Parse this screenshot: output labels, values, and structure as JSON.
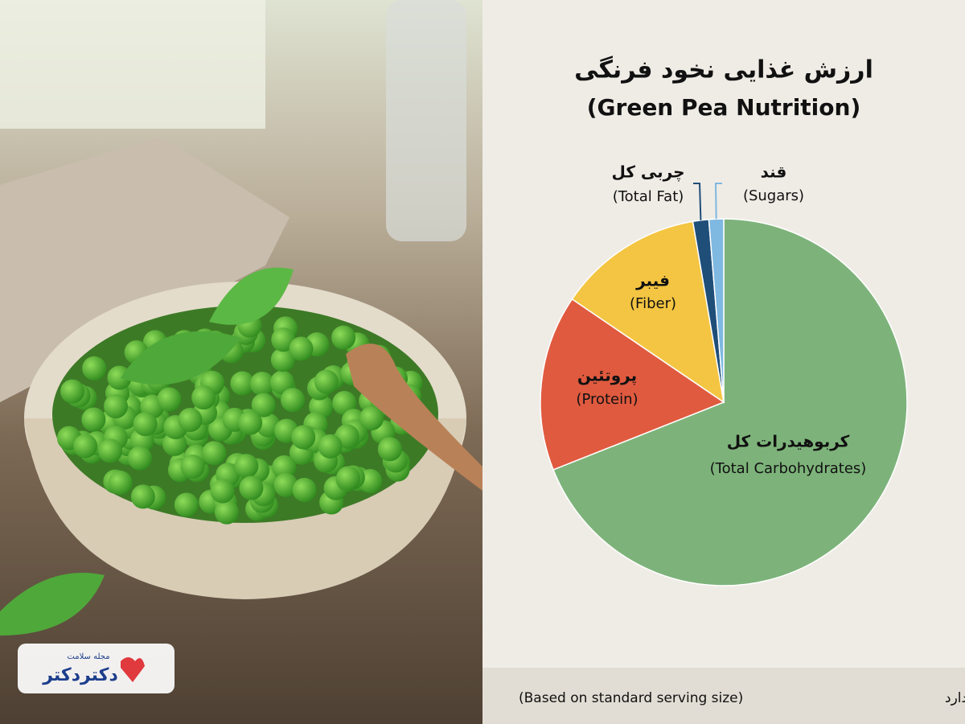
{
  "chart_data": {
    "type": "pie",
    "title": "ارزش غذایی نخود فرنگی",
    "subtitle": "(Green Pea Nutrition)",
    "categories": [
      "کربوهیدرات کل",
      "پروتئین",
      "فیبر",
      "چربی کل",
      "قند"
    ],
    "categories_en": [
      "(Total Carbohydrates)",
      "(Protein)",
      "(Fiber)",
      "(Total Fat)",
      "(Sugars)"
    ],
    "values": [
      69,
      15.5,
      12.8,
      1.4,
      1.3
    ],
    "colors": [
      "#7db37a",
      "#e05a3f",
      "#f4c542",
      "#1f4e79",
      "#7fb8e0"
    ],
    "footnote_fa": "بر اساس اندازه سرو استاندارد",
    "footnote_en": "(Based on standard serving size)"
  },
  "logo": {
    "tagline": "مجله سلامت",
    "name": "دکتردکتر"
  }
}
